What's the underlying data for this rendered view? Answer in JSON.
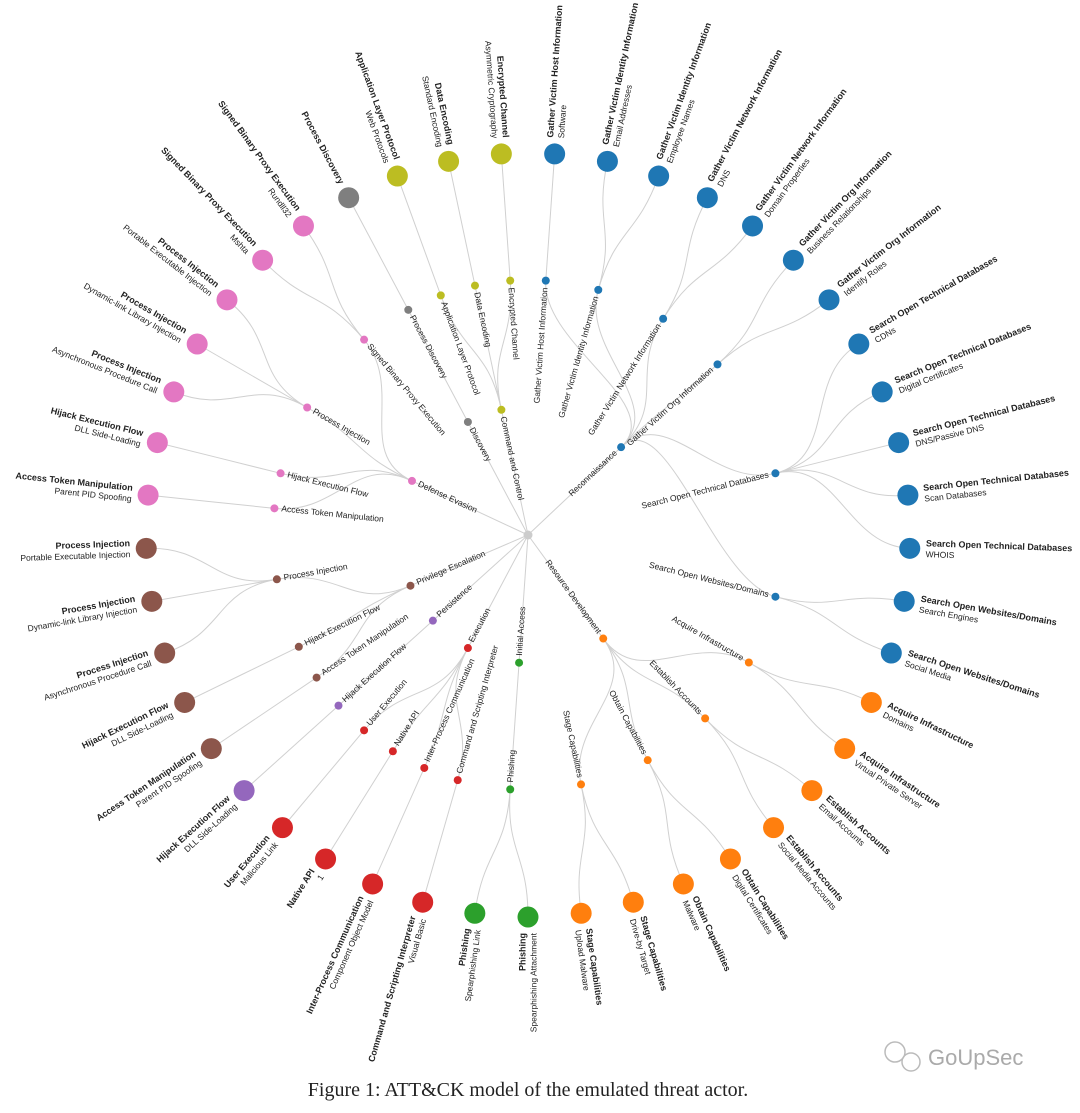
{
  "tactics": [
    {
      "name": "Discovery",
      "color": "#7f7f7f",
      "techniques": [
        {
          "name": "Process Discovery",
          "leaves": [
            {
              "title": "Process Discovery"
            }
          ]
        }
      ]
    },
    {
      "name": "Command and Control",
      "color": "#bcbd22",
      "techniques": [
        {
          "name": "Application Layer Protocol",
          "leaves": [
            {
              "title": "Application Layer Protocol",
              "sub": "Web Protocols"
            }
          ]
        },
        {
          "name": "Data Encoding",
          "leaves": [
            {
              "title": "Data Encoding",
              "sub": "Standard Encoding"
            }
          ]
        },
        {
          "name": "Encrypted Channel",
          "leaves": [
            {
              "title": "Encrypted Channel",
              "sub": "Asymmetric Cryptography"
            }
          ]
        }
      ]
    },
    {
      "name": "Reconnaissance",
      "color": "#1f77b4",
      "techniques": [
        {
          "name": "Gather Victim Host Information",
          "leaves": [
            {
              "title": "Gather Victim Host Information",
              "sub": "Software"
            }
          ]
        },
        {
          "name": "Gather Victim Identity Information",
          "leaves": [
            {
              "title": "Gather Victim Identity Information",
              "sub": "Email Addresses"
            },
            {
              "title": "Gather Victim Identity Information",
              "sub": "Employee Names"
            }
          ]
        },
        {
          "name": "Gather Victim Network Information",
          "leaves": [
            {
              "title": "Gather Victim Network Information",
              "sub": "DNS"
            },
            {
              "title": "Gather Victim Network Information",
              "sub": "Domain Properties"
            }
          ]
        },
        {
          "name": "Gather Victim Org Information",
          "leaves": [
            {
              "title": "Gather Victim Org Information",
              "sub": "Business Relationships"
            },
            {
              "title": "Gather Victim Org Information",
              "sub": "Identify Roles"
            }
          ]
        },
        {
          "name": "Search Open Technical Databases",
          "leaves": [
            {
              "title": "Search Open Technical Databases",
              "sub": "CDNs"
            },
            {
              "title": "Search Open Technical Databases",
              "sub": "Digital Certificates"
            },
            {
              "title": "Search Open Technical Databases",
              "sub": "DNS/Passive DNS"
            },
            {
              "title": "Search Open Technical Databases",
              "sub": "Scan Databases"
            },
            {
              "title": "Search Open Technical Databases",
              "sub": "WHOIS"
            }
          ]
        },
        {
          "name": "Search Open Websites/Domains",
          "leaves": [
            {
              "title": "Search Open Websites/Domains",
              "sub": "Search Engines"
            },
            {
              "title": "Search Open Websites/Domains",
              "sub": "Social Media"
            }
          ]
        }
      ]
    },
    {
      "name": "Resource Development",
      "color": "#ff7f0e",
      "techniques": [
        {
          "name": "Acquire Infrastructure",
          "leaves": [
            {
              "title": "Acquire Infrastructure",
              "sub": "Domains"
            },
            {
              "title": "Acquire Infrastructure",
              "sub": "Virtual Private Server"
            }
          ]
        },
        {
          "name": "Establish Accounts",
          "leaves": [
            {
              "title": "Establish Accounts",
              "sub": "Email Accounts"
            },
            {
              "title": "Establish Accounts",
              "sub": "Social Media Accounts"
            }
          ]
        },
        {
          "name": "Obtain Capabilities",
          "leaves": [
            {
              "title": "Obtain Capabilities",
              "sub": "Digital Certificates"
            },
            {
              "title": "Obtain Capabilities",
              "sub": "Malware"
            }
          ]
        },
        {
          "name": "Stage Capabilities",
          "leaves": [
            {
              "title": "Stage Capabilities",
              "sub": "Drive-by Target"
            },
            {
              "title": "Stage Capabilities",
              "sub": "Upload Malware"
            }
          ]
        }
      ]
    },
    {
      "name": "Initial Access",
      "color": "#2ca02c",
      "techniques": [
        {
          "name": "Phishing",
          "leaves": [
            {
              "title": "Phishing",
              "sub": "Spearphishing Attachment"
            },
            {
              "title": "Phishing",
              "sub": "Spearphishing Link"
            }
          ]
        }
      ]
    },
    {
      "name": "Execution",
      "color": "#d62728",
      "techniques": [
        {
          "name": "Command and Scripting Interpreter",
          "leaves": [
            {
              "title": "Command and Scripting Interpreter",
              "sub": "Visual Basic"
            }
          ]
        },
        {
          "name": "Inter-Process Communication",
          "leaves": [
            {
              "title": "Inter-Process Communication",
              "sub": "Component Object Model"
            }
          ]
        },
        {
          "name": "Native API",
          "leaves": [
            {
              "title": "Native API",
              "sub": "1"
            }
          ]
        },
        {
          "name": "User Execution",
          "leaves": [
            {
              "title": "User Execution",
              "sub": "Malicious Link"
            }
          ]
        }
      ]
    },
    {
      "name": "Persistence",
      "color": "#9467bd",
      "techniques": [
        {
          "name": "Hijack Execution Flow",
          "leaves": [
            {
              "title": "Hijack Execution Flow",
              "sub": "DLL Side-Loading"
            }
          ]
        }
      ]
    },
    {
      "name": "Privilege Escalation",
      "color": "#8c564b",
      "techniques": [
        {
          "name": "Access Token Manipulation",
          "leaves": [
            {
              "title": "Access Token Manipulation",
              "sub": "Parent PID Spoofing"
            }
          ]
        },
        {
          "name": "Hijack Execution Flow",
          "leaves": [
            {
              "title": "Hijack Execution Flow",
              "sub": "DLL Side-Loading"
            }
          ]
        },
        {
          "name": "Process Injection",
          "leaves": [
            {
              "title": "Process Injection",
              "sub": "Asynchronous Procedure Call"
            },
            {
              "title": "Process Injection",
              "sub": "Dynamic-link Library Injection"
            },
            {
              "title": "Process Injection",
              "sub": "Portable Executable Injection"
            }
          ]
        }
      ]
    },
    {
      "name": "Defense Evasion",
      "color": "#e377c2",
      "techniques": [
        {
          "name": "Access Token Manipulation",
          "leaves": [
            {
              "title": "Access Token Manipulation",
              "sub": "Parent PID Spoofing"
            }
          ]
        },
        {
          "name": "Hijack Execution Flow",
          "leaves": [
            {
              "title": "Hijack Execution Flow",
              "sub": "DLL Side-Loading"
            }
          ]
        },
        {
          "name": "Process Injection",
          "leaves": [
            {
              "title": "Process Injection",
              "sub": "Asynchronous Procedure Call"
            },
            {
              "title": "Process Injection",
              "sub": "Dynamic-link Library Injection"
            },
            {
              "title": "Process Injection",
              "sub": "Portable Executable Injection"
            }
          ]
        },
        {
          "name": "Signed Binary Proxy Execution",
          "leaves": [
            {
              "title": "Signed Binary Proxy Execution",
              "sub": "Mshta"
            },
            {
              "title": "Signed Binary Proxy Execution",
              "sub": "Rundll32"
            }
          ]
        }
      ]
    }
  ],
  "watermark": "GoUpSec",
  "caption": "Figure 1: ATT&CK model of the emulated threat actor."
}
